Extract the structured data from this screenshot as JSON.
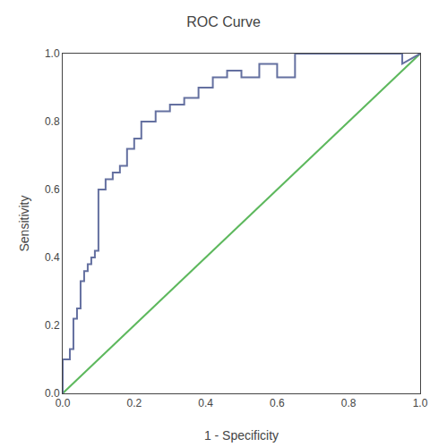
{
  "chart_data": {
    "type": "line",
    "title": "ROC Curve",
    "xlabel": "1 - Specificity",
    "ylabel": "Sensitivity",
    "xlim": [
      0.0,
      1.0
    ],
    "ylim": [
      0.0,
      1.0
    ],
    "xticks": [
      {
        "value": 0.0,
        "label": "0.0"
      },
      0.2,
      0.4,
      0.6,
      0.8,
      {
        "value": 1.0,
        "label": "1.0"
      }
    ],
    "yticks": [
      {
        "value": 0.0,
        "label": "0.0"
      },
      0.2,
      0.4,
      0.6,
      0.8,
      {
        "value": 1.0,
        "label": "1.0"
      }
    ],
    "grid": false,
    "series": [
      {
        "color": "#5db85d",
        "x": [
          0,
          1
        ],
        "values": [
          0,
          1
        ]
      },
      {
        "color": "#6470a0",
        "x": [
          0.0,
          0.0,
          0.02,
          0.02,
          0.03,
          0.03,
          0.04,
          0.04,
          0.05,
          0.05,
          0.06,
          0.06,
          0.07,
          0.07,
          0.08,
          0.08,
          0.09,
          0.09,
          0.1,
          0.1,
          0.12,
          0.12,
          0.14,
          0.14,
          0.16,
          0.16,
          0.18,
          0.18,
          0.2,
          0.2,
          0.22,
          0.22,
          0.26,
          0.26,
          0.3,
          0.3,
          0.34,
          0.34,
          0.38,
          0.38,
          0.42,
          0.42,
          0.46,
          0.46,
          0.5,
          0.5,
          0.55,
          0.55,
          0.6,
          0.6,
          0.65,
          0.65,
          0.95,
          0.95,
          1.0
        ],
        "values": [
          0.0,
          0.1,
          0.1,
          0.13,
          0.13,
          0.22,
          0.22,
          0.25,
          0.25,
          0.33,
          0.33,
          0.36,
          0.36,
          0.38,
          0.38,
          0.4,
          0.4,
          0.42,
          0.42,
          0.6,
          0.6,
          0.63,
          0.63,
          0.65,
          0.65,
          0.67,
          0.67,
          0.72,
          0.72,
          0.75,
          0.75,
          0.8,
          0.8,
          0.83,
          0.83,
          0.85,
          0.85,
          0.87,
          0.87,
          0.9,
          0.9,
          0.93,
          0.93,
          0.95,
          0.95,
          0.93,
          0.93,
          0.97,
          0.97,
          0.93,
          0.93,
          1.0,
          1.0,
          0.97,
          1.0
        ]
      }
    ]
  }
}
